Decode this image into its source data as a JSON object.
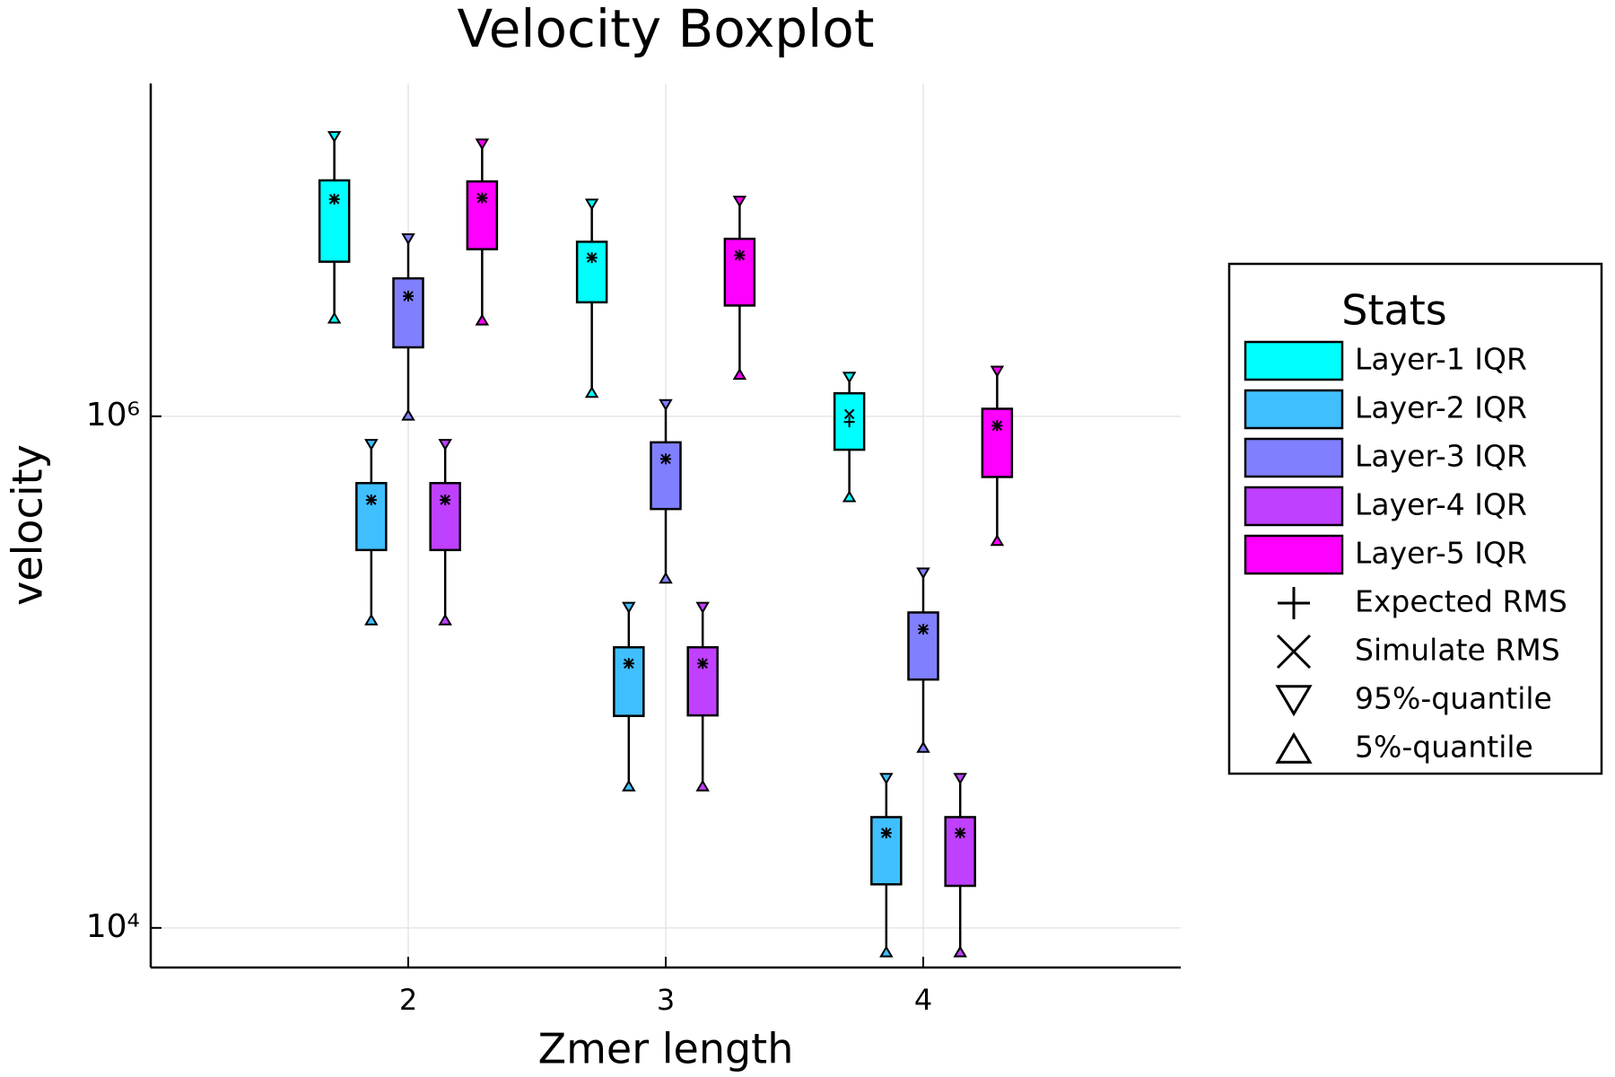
{
  "chart_data": {
    "type": "boxplot",
    "title": "Velocity Boxplot",
    "x_label": "Zmer length",
    "y_label": "velocity",
    "x": [
      2,
      3,
      4
    ],
    "xlim": [
      1,
      5
    ],
    "xticks": [
      2,
      3,
      4
    ],
    "ylim": [
      7000,
      20000000
    ],
    "yticks": [
      {
        "value": 10000,
        "label": "10⁴"
      },
      {
        "value": 1000000,
        "label": "10⁶"
      }
    ],
    "y_scale": "log",
    "grid": true,
    "legend": "outer right",
    "legend_title": "Stats",
    "series": [
      {
        "name": "Layer-1 IQR",
        "color": "#00ffff",
        "q5": [
          2420000,
          1240000,
          485000
        ],
        "q1": [
          4020000,
          2790000,
          740000
        ],
        "q3": [
          8360000,
          4810000,
          1230000
        ],
        "q95": [
          12400000,
          6750000,
          1420000
        ],
        "expected_rms": [
          7060000,
          4170000,
          950000
        ],
        "simulated_rms": [
          7060000,
          4170000,
          1020000
        ]
      },
      {
        "name": "Layer-2 IQR",
        "color": "#40bfff",
        "q5": [
          160000,
          35900,
          8060
        ],
        "q1": [
          300000,
          67400,
          14800
        ],
        "q3": [
          548000,
          125000,
          27100
        ],
        "q95": [
          776000,
          179000,
          38400
        ],
        "expected_rms": [
          471000,
          108000,
          23500
        ],
        "simulated_rms": [
          471000,
          108000,
          23500
        ]
      },
      {
        "name": "Layer-3 IQR",
        "color": "#8080ff",
        "q5": [
          1010000,
          233000,
          50800
        ],
        "q1": [
          1860000,
          434000,
          93500
        ],
        "q3": [
          3460000,
          791000,
          171000
        ],
        "q95": [
          4940000,
          1110000,
          244000
        ],
        "expected_rms": [
          2950000,
          681000,
          147000
        ],
        "simulated_rms": [
          2950000,
          681000,
          147000
        ]
      },
      {
        "name": "Layer-4 IQR",
        "color": "#bf40ff",
        "q5": [
          160000,
          35900,
          8060
        ],
        "q1": [
          300000,
          67700,
          14600
        ],
        "q3": [
          548000,
          125000,
          27100
        ],
        "q95": [
          776000,
          179000,
          38400
        ],
        "expected_rms": [
          471000,
          108000,
          23500
        ],
        "simulated_rms": [
          471000,
          108000,
          23500
        ]
      },
      {
        "name": "Layer-5 IQR",
        "color": "#ff00ff",
        "q5": [
          2380000,
          1460000,
          327000
        ],
        "q1": [
          4500000,
          2710000,
          579000
        ],
        "q3": [
          8280000,
          4940000,
          1070000
        ],
        "q95": [
          11600000,
          6930000,
          1500000
        ],
        "expected_rms": [
          7130000,
          4260000,
          919000
        ],
        "simulated_rms": [
          7130000,
          4260000,
          919000
        ]
      }
    ],
    "markers": [
      {
        "name": "Expected RMS",
        "symbol": "plus"
      },
      {
        "name": "Simulate RMS",
        "symbol": "cross"
      },
      {
        "name": "95%-quantile",
        "symbol": "triangle-down"
      },
      {
        "name": "5%-quantile",
        "symbol": "triangle-up"
      }
    ]
  }
}
